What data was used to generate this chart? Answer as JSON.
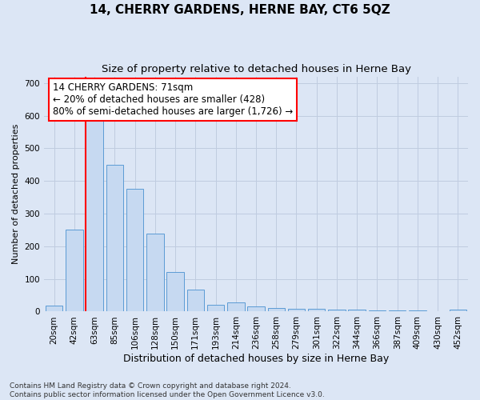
{
  "title": "14, CHERRY GARDENS, HERNE BAY, CT6 5QZ",
  "subtitle": "Size of property relative to detached houses in Herne Bay",
  "xlabel": "Distribution of detached houses by size in Herne Bay",
  "ylabel": "Number of detached properties",
  "categories": [
    "20sqm",
    "42sqm",
    "63sqm",
    "85sqm",
    "106sqm",
    "128sqm",
    "150sqm",
    "171sqm",
    "193sqm",
    "214sqm",
    "236sqm",
    "258sqm",
    "279sqm",
    "301sqm",
    "322sqm",
    "344sqm",
    "366sqm",
    "387sqm",
    "409sqm",
    "430sqm",
    "452sqm"
  ],
  "values": [
    18,
    250,
    585,
    450,
    375,
    238,
    120,
    68,
    20,
    28,
    15,
    10,
    8,
    8,
    6,
    5,
    4,
    4,
    3,
    2,
    5
  ],
  "bar_color": "#c6d9f1",
  "bar_edge_color": "#5b9bd5",
  "annotation_box_text_line1": "14 CHERRY GARDENS: 71sqm",
  "annotation_box_text_line2": "← 20% of detached houses are smaller (428)",
  "annotation_box_text_line3": "80% of semi-detached houses are larger (1,726) →",
  "annotation_box_color": "white",
  "annotation_box_edge_color": "red",
  "vline_color": "red",
  "vline_x": 1.55,
  "ylim": [
    0,
    720
  ],
  "yticks": [
    0,
    100,
    200,
    300,
    400,
    500,
    600,
    700
  ],
  "grid_color": "#c0cce0",
  "background_color": "#dce6f5",
  "footer_line1": "Contains HM Land Registry data © Crown copyright and database right 2024.",
  "footer_line2": "Contains public sector information licensed under the Open Government Licence v3.0.",
  "title_fontsize": 11,
  "subtitle_fontsize": 9.5,
  "xlabel_fontsize": 9,
  "ylabel_fontsize": 8,
  "tick_fontsize": 7.5,
  "annotation_fontsize": 8.5,
  "footer_fontsize": 6.5
}
